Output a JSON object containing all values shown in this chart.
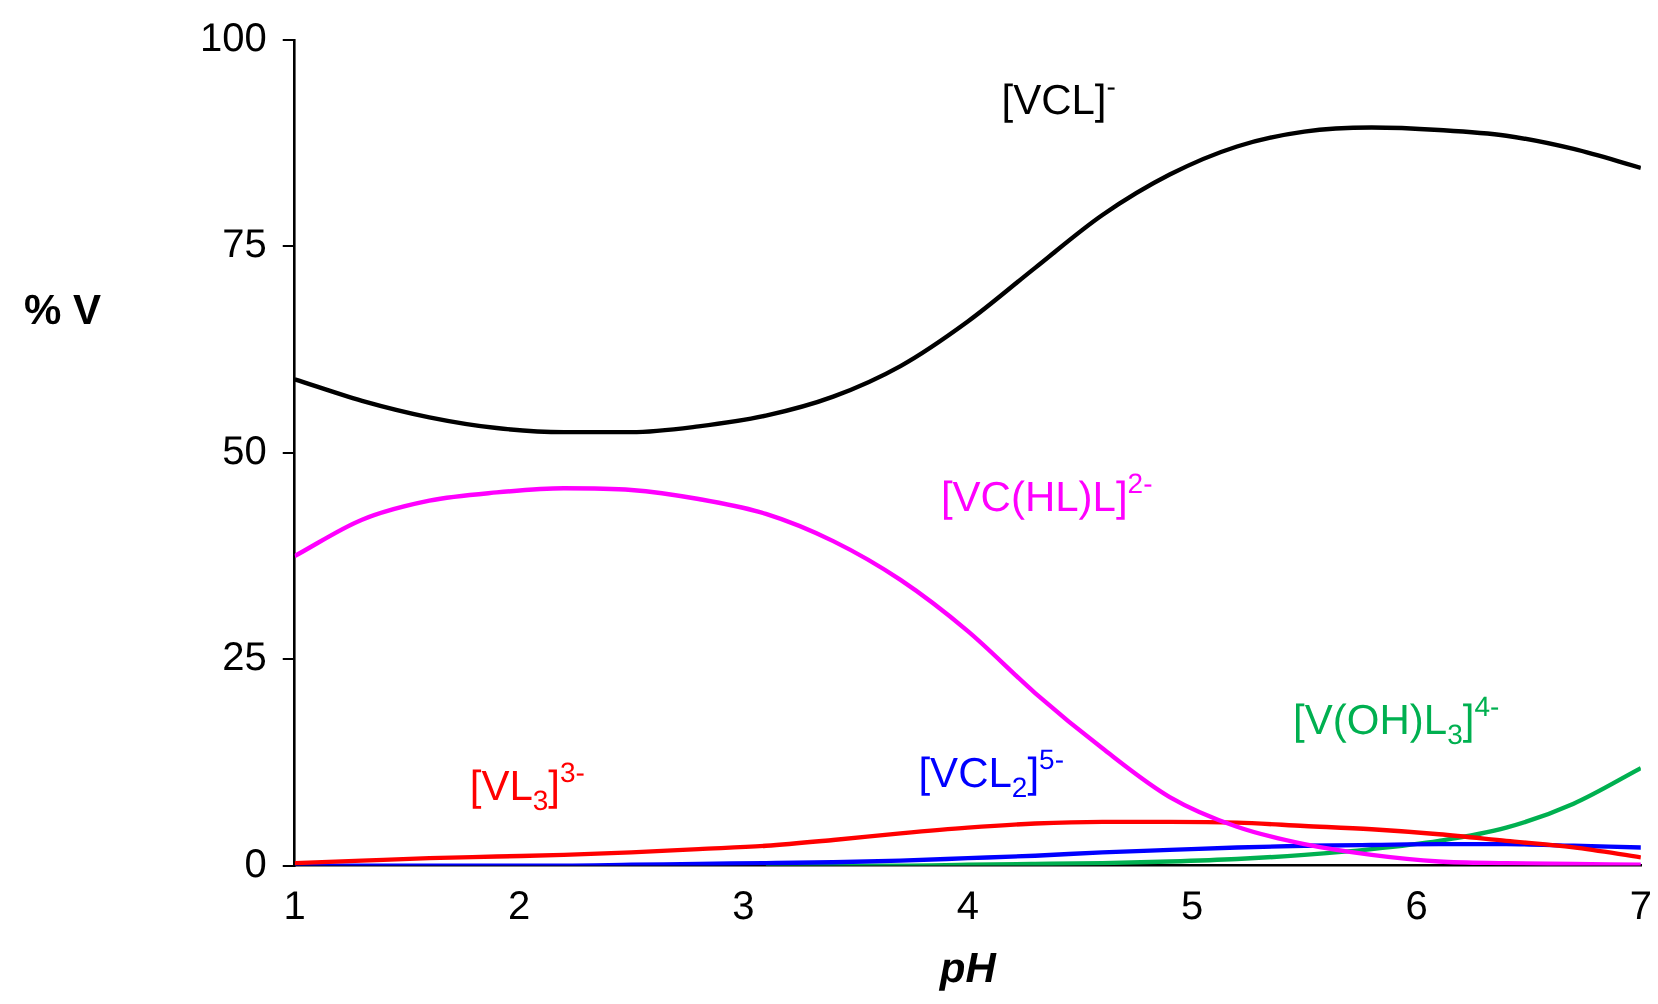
{
  "chart_data": {
    "type": "line",
    "xlabel": "pH",
    "ylabel": "% V",
    "xlim": [
      1,
      7
    ],
    "xticks": [
      1,
      2,
      3,
      4,
      5,
      6,
      7
    ],
    "ylim": [
      0,
      100
    ],
    "yticks": [
      0,
      25,
      50,
      75,
      100
    ],
    "grid": false,
    "legend": false,
    "marker": "none",
    "x": [
      1,
      1.3,
      1.6,
      1.9,
      2.2,
      2.5,
      2.8,
      3.1,
      3.4,
      3.7,
      4,
      4.3,
      4.6,
      4.9,
      5.2,
      5.5,
      5.8,
      6.1,
      6.4,
      6.7,
      7
    ],
    "series": [
      {
        "name": "[VCL]$^{-}$",
        "color": "#000000",
        "values": [
          58.9,
          56.3,
          54.3,
          53,
          52.5,
          52.5,
          53.2,
          54.5,
          56.8,
          60.5,
          65.9,
          72.4,
          78.8,
          83.7,
          87.1,
          88.9,
          89.4,
          89.1,
          88.4,
          86.8,
          84.5
        ]
      },
      {
        "name": "[VC(HL)L]$^{2-}$",
        "color": "#ff00ff",
        "values": [
          37.5,
          41.9,
          44.2,
          45.2,
          45.7,
          45.5,
          44.4,
          42.6,
          39.3,
          34.6,
          28.4,
          20.9,
          14.2,
          8.3,
          4.7,
          2.6,
          1.3,
          0.5,
          0.3,
          0.2,
          0.1
        ]
      },
      {
        "name": "[VL$_{3}$]$^{3-}$",
        "color": "#ff0000",
        "values": [
          0.3,
          0.6,
          0.9,
          1.1,
          1.3,
          1.6,
          2,
          2.4,
          3.1,
          3.9,
          4.6,
          5.1,
          5.3,
          5.3,
          5.2,
          4.8,
          4.4,
          3.8,
          3,
          2.2,
          1
        ]
      },
      {
        "name": "[VCL$_{2}$]$^{5-}$",
        "color": "#0000ff",
        "values": [
          0,
          0,
          0,
          0,
          0,
          0.1,
          0.2,
          0.3,
          0.4,
          0.6,
          0.9,
          1.2,
          1.6,
          1.9,
          2.2,
          2.4,
          2.5,
          2.6,
          2.6,
          2.4,
          2.2
        ]
      },
      {
        "name": "[V(OH)L$_{3}$]$^{4-}$",
        "color": "#00b050",
        "values": [
          null,
          null,
          null,
          null,
          null,
          null,
          null,
          0,
          0,
          0,
          0.1,
          0.2,
          0.3,
          0.5,
          0.8,
          1.3,
          2,
          3,
          4.6,
          7.5,
          11.8
        ]
      }
    ]
  }
}
